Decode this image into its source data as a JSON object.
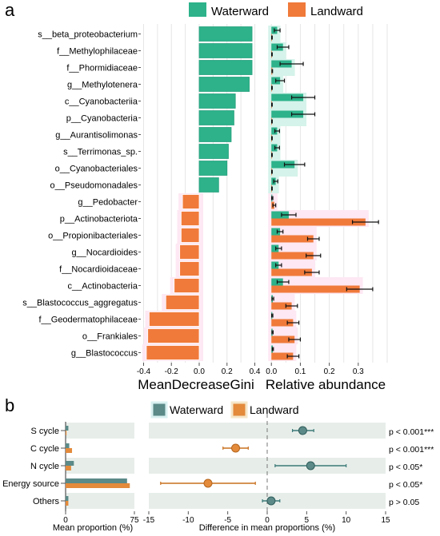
{
  "panel_a": {
    "letter": "a",
    "legend": [
      {
        "label": "Waterward",
        "color": "#2db28a"
      },
      {
        "label": "Landward",
        "color": "#f07a3a"
      }
    ],
    "taxa": [
      "s__beta_proteobacterium",
      "f__Methylophilaceae",
      "f__Phormidiaceae",
      "g__Methylotenera",
      "c__Cyanobacteriia",
      "p__Cyanobacteria",
      "g__Aurantisolimonas",
      "s__Terrimonas_sp.",
      "o__Cyanobacteriales",
      "o__Pseudomonadales",
      "g__Pedobacter",
      "p__Actinobacteriota",
      "o__Propionibacteriales",
      "g__Nocardioides",
      "f__Nocardioidaceae",
      "c__Actinobacteria",
      "s__Blastococcus_aggregatus",
      "f__Geodermatophilaceae",
      "o__Frankiales",
      "g__Blastococcus"
    ],
    "gini_chart": {
      "type": "bar",
      "orientation": "horizontal",
      "xlabel": "MeanDecreaseGini",
      "xlim": [
        -0.42,
        0.42
      ],
      "xticks": [
        "-0.4",
        "-0.2",
        "0.0",
        "0.2",
        "0.4"
      ],
      "group": [
        "Waterward",
        "Waterward",
        "Waterward",
        "Waterward",
        "Waterward",
        "Waterward",
        "Waterward",
        "Waterward",
        "Waterward",
        "Waterward",
        "Landward",
        "Landward",
        "Landward",
        "Landward",
        "Landward",
        "Landward",
        "Landward",
        "Landward",
        "Landward",
        "Landward"
      ],
      "values": [
        0.38,
        0.38,
        0.38,
        0.36,
        0.26,
        0.25,
        0.23,
        0.21,
        0.2,
        0.14,
        -0.12,
        -0.13,
        -0.13,
        -0.14,
        -0.14,
        -0.18,
        -0.24,
        -0.36,
        -0.37,
        -0.38
      ]
    },
    "abundance_chart": {
      "type": "bar",
      "orientation": "horizontal",
      "xlabel": "Relative abundance",
      "xlim": [
        -0.02,
        0.4
      ],
      "xticks": [
        "0.0",
        "0.1",
        "0.2",
        "0.3"
      ],
      "waterward": {
        "values": [
          0.02,
          0.04,
          0.07,
          0.03,
          0.11,
          0.11,
          0.02,
          0.02,
          0.08,
          0.015,
          0.003,
          0.06,
          0.03,
          0.025,
          0.025,
          0.04,
          0.005,
          0.003,
          0.004,
          0.005
        ],
        "errors": [
          0.01,
          0.02,
          0.04,
          0.015,
          0.04,
          0.04,
          0.008,
          0.008,
          0.035,
          0.007,
          0.002,
          0.025,
          0.01,
          0.01,
          0.01,
          0.02,
          0.003,
          0.002,
          0.002,
          0.002
        ]
      },
      "landward": {
        "values": [
          0.002,
          0.002,
          0.003,
          0.002,
          0.002,
          0.002,
          0.002,
          0.002,
          0.002,
          0.002,
          0.01,
          0.325,
          0.145,
          0.145,
          0.14,
          0.305,
          0.07,
          0.075,
          0.08,
          0.075
        ],
        "errors": [
          0.001,
          0.001,
          0.001,
          0.001,
          0.001,
          0.001,
          0.001,
          0.001,
          0.001,
          0.001,
          0.005,
          0.045,
          0.02,
          0.025,
          0.025,
          0.045,
          0.02,
          0.02,
          0.02,
          0.02
        ]
      }
    }
  },
  "panel_b": {
    "letter": "b",
    "legend": [
      {
        "label": "Waterward",
        "color": "#5b8a88"
      },
      {
        "label": "Landward",
        "color": "#e38a3b"
      }
    ],
    "categories": [
      "S cycle",
      "C cycle",
      "N cycle",
      "Energy source",
      "Others"
    ],
    "proportion_chart": {
      "type": "bar",
      "orientation": "horizontal",
      "xlabel": "Mean proportion (%)",
      "xlim": [
        0,
        75
      ],
      "xticks": [
        "0",
        "75"
      ],
      "waterward": [
        3,
        4,
        9,
        67,
        3
      ],
      "landward": [
        1,
        7,
        6,
        70,
        3
      ]
    },
    "difference_chart": {
      "type": "scatter",
      "xlabel": "Difference in mean proportions (%)",
      "xlim": [
        -15,
        15
      ],
      "xticks": [
        "-15",
        "-10",
        "-5",
        "0",
        "5",
        "10",
        "15"
      ],
      "estimate": [
        4.5,
        -4.0,
        5.5,
        -7.5,
        0.5
      ],
      "ci_low": [
        3.2,
        -5.6,
        1.0,
        -13.5,
        -0.6
      ],
      "ci_high": [
        5.9,
        -2.4,
        10.0,
        -1.5,
        1.6
      ],
      "favours": [
        "Waterward",
        "Landward",
        "Waterward",
        "Landward",
        "Waterward"
      ],
      "pvalues": [
        "p < 0.001***",
        "p < 0.001***",
        "p < 0.05*",
        "p < 0.05*",
        "p > 0.05"
      ]
    }
  }
}
